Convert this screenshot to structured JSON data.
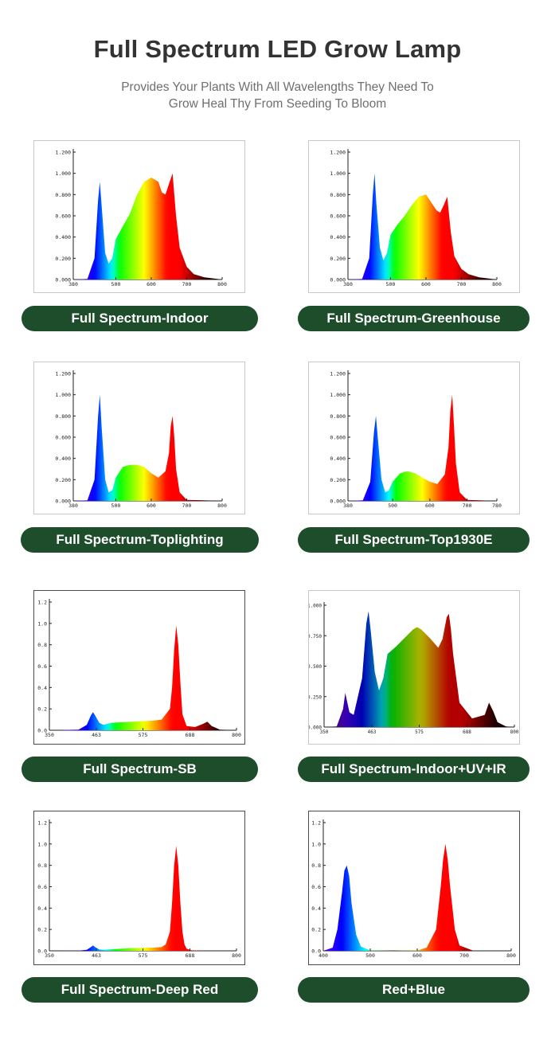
{
  "header": {
    "title": "Full Spectrum LED Grow Lamp",
    "subtitle_line1": "Provides Your Plants With All Wavelengths They Need To",
    "subtitle_line2": "Grow Heal Thy From Seeding To Bloom"
  },
  "colors": {
    "pill_bg": "#1e4d2b",
    "pill_text": "#ffffff",
    "title": "#333333",
    "subtitle": "#6f6f6f"
  },
  "chart_data": [
    {
      "type": "area",
      "label": "Full Spectrum-Indoor",
      "xlim": [
        380,
        800
      ],
      "ylim": [
        0,
        1.2
      ],
      "xticks": [
        380,
        500,
        600,
        700,
        800
      ],
      "xtick_labels": [
        "380",
        "500",
        "600",
        "700",
        "800"
      ],
      "yticks": [
        0,
        0.2,
        0.4,
        0.6,
        0.8,
        1.0,
        1.2
      ],
      "ytick_labels": [
        "0.000",
        "0.200",
        "0.400",
        "0.600",
        "0.800",
        "1.000",
        "1.200"
      ],
      "x": [
        380,
        420,
        440,
        450,
        455,
        460,
        470,
        480,
        490,
        500,
        520,
        540,
        560,
        580,
        600,
        620,
        630,
        640,
        650,
        660,
        670,
        680,
        700,
        720,
        750,
        800
      ],
      "values": [
        0,
        0.005,
        0.2,
        0.75,
        0.92,
        0.7,
        0.25,
        0.15,
        0.2,
        0.38,
        0.5,
        0.62,
        0.8,
        0.92,
        0.96,
        0.92,
        0.82,
        0.8,
        0.9,
        1.0,
        0.6,
        0.3,
        0.12,
        0.05,
        0.02,
        0
      ],
      "tint": "none"
    },
    {
      "type": "area",
      "label": "Full Spectrum-Greenhouse",
      "xlim": [
        380,
        800
      ],
      "ylim": [
        0,
        1.2
      ],
      "xticks": [
        380,
        500,
        600,
        700,
        800
      ],
      "xtick_labels": [
        "380",
        "500",
        "600",
        "700",
        "800"
      ],
      "yticks": [
        0,
        0.2,
        0.4,
        0.6,
        0.8,
        1.0,
        1.2
      ],
      "ytick_labels": [
        "0.000",
        "0.200",
        "0.400",
        "0.600",
        "0.800",
        "1.000",
        "1.200"
      ],
      "x": [
        380,
        420,
        440,
        450,
        455,
        460,
        470,
        480,
        490,
        500,
        520,
        540,
        560,
        580,
        600,
        620,
        630,
        640,
        650,
        660,
        670,
        680,
        700,
        720,
        750,
        800
      ],
      "values": [
        0,
        0.005,
        0.2,
        0.8,
        1.0,
        0.72,
        0.3,
        0.18,
        0.25,
        0.42,
        0.52,
        0.6,
        0.7,
        0.78,
        0.8,
        0.7,
        0.65,
        0.63,
        0.7,
        0.78,
        0.45,
        0.22,
        0.1,
        0.05,
        0.02,
        0
      ],
      "tint": "none"
    },
    {
      "type": "area",
      "label": "Full Spectrum-Toplighting",
      "xlim": [
        380,
        800
      ],
      "ylim": [
        0,
        1.2
      ],
      "xticks": [
        380,
        500,
        600,
        700,
        800
      ],
      "xtick_labels": [
        "380",
        "500",
        "600",
        "700",
        "800"
      ],
      "yticks": [
        0,
        0.2,
        0.4,
        0.6,
        0.8,
        1.0,
        1.2
      ],
      "ytick_labels": [
        "0.000",
        "0.200",
        "0.400",
        "0.600",
        "0.800",
        "1.000",
        "1.200"
      ],
      "x": [
        380,
        420,
        440,
        450,
        455,
        460,
        470,
        480,
        490,
        500,
        520,
        540,
        560,
        580,
        600,
        620,
        640,
        650,
        655,
        660,
        665,
        670,
        680,
        700,
        800
      ],
      "values": [
        0,
        0.005,
        0.2,
        0.8,
        1.0,
        0.7,
        0.2,
        0.08,
        0.1,
        0.22,
        0.32,
        0.34,
        0.34,
        0.32,
        0.26,
        0.22,
        0.28,
        0.45,
        0.7,
        0.8,
        0.6,
        0.3,
        0.08,
        0.01,
        0
      ],
      "tint": "none"
    },
    {
      "type": "area",
      "label": "Full Spectrum-Top1930E",
      "xlim": [
        380,
        780
      ],
      "ylim": [
        0,
        1.2
      ],
      "xticks": [
        380,
        500,
        600,
        700,
        780
      ],
      "xtick_labels": [
        "380",
        "500",
        "600",
        "700",
        "780"
      ],
      "yticks": [
        0,
        0.2,
        0.4,
        0.6,
        0.8,
        1.0,
        1.2
      ],
      "ytick_labels": [
        "0.000",
        "0.200",
        "0.400",
        "0.600",
        "0.800",
        "1.000",
        "1.200"
      ],
      "x": [
        380,
        420,
        440,
        450,
        455,
        460,
        470,
        480,
        490,
        500,
        520,
        540,
        560,
        580,
        600,
        620,
        640,
        650,
        655,
        660,
        665,
        670,
        680,
        700,
        780
      ],
      "values": [
        0,
        0.005,
        0.18,
        0.65,
        0.8,
        0.6,
        0.2,
        0.08,
        0.1,
        0.18,
        0.26,
        0.28,
        0.26,
        0.22,
        0.18,
        0.16,
        0.25,
        0.5,
        0.85,
        1.0,
        0.7,
        0.35,
        0.08,
        0.01,
        0
      ],
      "tint": "none"
    },
    {
      "type": "area",
      "label": "Full Spectrum-SB",
      "xlim": [
        350,
        800
      ],
      "ylim": [
        0,
        1.2
      ],
      "xticks": [
        350,
        463,
        575,
        688,
        800
      ],
      "xtick_labels": [
        "350",
        "463",
        "575",
        "688",
        "800"
      ],
      "yticks": [
        0,
        0.2,
        0.4,
        0.6,
        0.8,
        1.0,
        1.2
      ],
      "ytick_labels": [
        "0.0",
        "0.2",
        "0.4",
        "0.6",
        "0.8",
        "1.0",
        "1.2"
      ],
      "x": [
        350,
        420,
        440,
        450,
        455,
        460,
        470,
        480,
        500,
        550,
        600,
        620,
        640,
        645,
        650,
        655,
        660,
        665,
        670,
        680,
        700,
        720,
        730,
        740,
        760,
        800
      ],
      "values": [
        0,
        0.005,
        0.05,
        0.14,
        0.17,
        0.14,
        0.07,
        0.05,
        0.07,
        0.08,
        0.09,
        0.1,
        0.2,
        0.4,
        0.75,
        0.98,
        0.8,
        0.45,
        0.15,
        0.04,
        0.03,
        0.06,
        0.08,
        0.04,
        0.005,
        0
      ],
      "tint": "none"
    },
    {
      "type": "area",
      "label": "Full Spectrum-Indoor+UV+IR",
      "xlim": [
        350,
        800
      ],
      "ylim": [
        0,
        1.0
      ],
      "xticks": [
        350,
        463,
        575,
        688,
        800
      ],
      "xtick_labels": [
        "350",
        "463",
        "575",
        "688",
        "800"
      ],
      "yticks": [
        0,
        0.25,
        0.5,
        0.75,
        1.0
      ],
      "ytick_labels": [
        "0.000",
        "0.250",
        "0.500",
        "0.750",
        "1.000"
      ],
      "x": [
        350,
        380,
        395,
        400,
        405,
        410,
        420,
        440,
        450,
        455,
        460,
        470,
        480,
        490,
        500,
        520,
        540,
        560,
        570,
        580,
        600,
        620,
        630,
        640,
        645,
        650,
        655,
        670,
        700,
        730,
        740,
        750,
        760,
        780,
        800
      ],
      "values": [
        0,
        0.005,
        0.15,
        0.28,
        0.2,
        0.12,
        0.1,
        0.4,
        0.85,
        0.95,
        0.8,
        0.45,
        0.3,
        0.4,
        0.6,
        0.66,
        0.73,
        0.8,
        0.82,
        0.8,
        0.73,
        0.65,
        0.72,
        0.9,
        0.93,
        0.8,
        0.6,
        0.2,
        0.07,
        0.1,
        0.2,
        0.13,
        0.04,
        0.005,
        0
      ],
      "tint": "dark"
    },
    {
      "type": "area",
      "label": "Full Spectrum-Deep Red",
      "xlim": [
        350,
        800
      ],
      "ylim": [
        0,
        1.2
      ],
      "xticks": [
        350,
        463,
        575,
        688,
        800
      ],
      "xtick_labels": [
        "350",
        "463",
        "575",
        "688",
        "800"
      ],
      "yticks": [
        0,
        0.2,
        0.4,
        0.6,
        0.8,
        1.0,
        1.2
      ],
      "ytick_labels": [
        "0.0",
        "0.2",
        "0.4",
        "0.6",
        "0.8",
        "1.0",
        "1.2"
      ],
      "x": [
        350,
        420,
        440,
        450,
        455,
        460,
        470,
        480,
        500,
        550,
        600,
        620,
        630,
        640,
        645,
        650,
        655,
        660,
        665,
        670,
        675,
        680,
        690,
        720,
        800
      ],
      "values": [
        0,
        0.002,
        0.01,
        0.035,
        0.05,
        0.035,
        0.012,
        0.01,
        0.015,
        0.025,
        0.03,
        0.035,
        0.06,
        0.18,
        0.45,
        0.8,
        0.98,
        0.8,
        0.45,
        0.18,
        0.06,
        0.02,
        0.005,
        0,
        0
      ],
      "tint": "none"
    },
    {
      "type": "area",
      "label": "Red+Blue",
      "xlim": [
        400,
        800
      ],
      "ylim": [
        0,
        1.2
      ],
      "xticks": [
        400,
        500,
        600,
        700,
        800
      ],
      "xtick_labels": [
        "400",
        "500",
        "600",
        "700",
        "800"
      ],
      "yticks": [
        0,
        0.2,
        0.4,
        0.6,
        0.8,
        1.0,
        1.2
      ],
      "ytick_labels": [
        "0.0",
        "0.2",
        "0.4",
        "0.6",
        "0.8",
        "1.0",
        "1.2"
      ],
      "x": [
        400,
        420,
        430,
        440,
        445,
        450,
        455,
        460,
        470,
        480,
        500,
        550,
        600,
        620,
        640,
        650,
        655,
        660,
        665,
        670,
        680,
        690,
        720,
        800
      ],
      "values": [
        0,
        0.03,
        0.2,
        0.55,
        0.75,
        0.8,
        0.7,
        0.45,
        0.15,
        0.04,
        0.003,
        0,
        0.003,
        0.03,
        0.2,
        0.6,
        0.85,
        1.0,
        0.85,
        0.6,
        0.2,
        0.05,
        0,
        0
      ],
      "tint": "none"
    }
  ]
}
